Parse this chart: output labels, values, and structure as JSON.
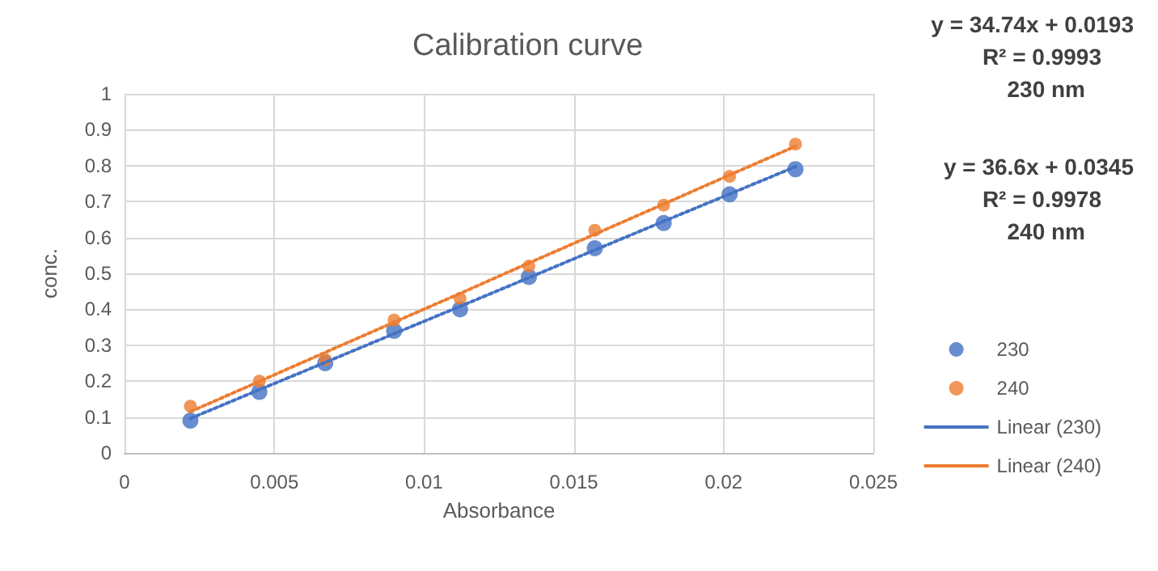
{
  "chart_data": {
    "type": "scatter",
    "title": "Calibration curve",
    "xlabel": "Absorbance",
    "ylabel": "conc.",
    "x": [
      0.0022,
      0.0045,
      0.0067,
      0.009,
      0.0112,
      0.0135,
      0.0157,
      0.018,
      0.0202,
      0.0224
    ],
    "series": [
      {
        "name": "230",
        "color": "#4472c4",
        "values": [
          0.09,
          0.17,
          0.25,
          0.34,
          0.4,
          0.49,
          0.57,
          0.64,
          0.72,
          0.79
        ]
      },
      {
        "name": "240",
        "color": "#ed7d31",
        "values": [
          0.13,
          0.2,
          0.26,
          0.37,
          0.43,
          0.52,
          0.62,
          0.69,
          0.77,
          0.86
        ]
      },
      {
        "name": "Linear (230)",
        "type": "line",
        "color": "#4472c4",
        "values": [
          0.096,
          0.176,
          0.252,
          0.332,
          0.408,
          0.488,
          0.565,
          0.645,
          0.721,
          0.797
        ],
        "line_style": "dotted",
        "marker": "none"
      },
      {
        "name": "Linear (240)",
        "type": "line",
        "color": "#ed7d31",
        "values": [
          0.115,
          0.199,
          0.28,
          0.364,
          0.444,
          0.529,
          0.609,
          0.693,
          0.774,
          0.854
        ],
        "line_style": "dotted",
        "marker": "none"
      }
    ],
    "annotations": [
      "y = 34.74x + 0.0193",
      "R² = 0.9993",
      "230 nm",
      "y = 36.6x + 0.0345",
      "R² = 0.9978",
      "240 nm"
    ],
    "marker": "circle",
    "xlim": [
      0,
      0.025
    ],
    "xticks": [
      0,
      0.005,
      0.01,
      0.015,
      0.02,
      0.025
    ],
    "ylim": [
      0,
      1
    ],
    "yticks": [
      0,
      0.1,
      0.2,
      0.3,
      0.4,
      0.5,
      0.6,
      0.7,
      0.8,
      0.9,
      1
    ],
    "grid": true,
    "legend": "right"
  }
}
